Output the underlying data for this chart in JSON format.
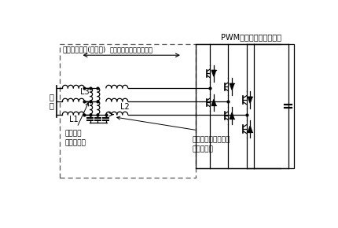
{
  "pwm_label": "PWMコンバータユニット",
  "filter_label": "フィルタ回路(新方式)",
  "main_current_label": "主動力電流が流れる経路",
  "added_reactor_label": "追加した\nリアクトル",
  "high_freq_label": "高周波リプル電流が\n流れる経路",
  "source_label": "電\n源",
  "L1": "L1",
  "L2": "L2",
  "L3": "L3",
  "bg_color": "#ffffff",
  "line_color": "#000000"
}
